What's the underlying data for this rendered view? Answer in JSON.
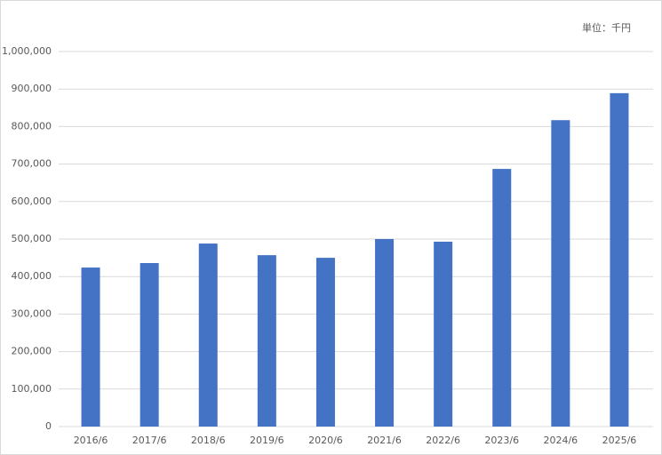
{
  "chart_data": {
    "type": "bar",
    "annotation": "単位：千円",
    "categories": [
      "2016/6",
      "2017/6",
      "2018/6",
      "2019/6",
      "2020/6",
      "2021/6",
      "2022/6",
      "2023/6",
      "2024/6",
      "2025/6"
    ],
    "values": [
      424000,
      436000,
      488000,
      457000,
      450000,
      500000,
      493000,
      687000,
      817000,
      889000
    ],
    "color": "#4472c4",
    "ylim": [
      0,
      1000000
    ],
    "yticks": [
      0,
      {
        "value": 100000,
        "label": "100,000"
      },
      {
        "value": 200000,
        "label": "200,000"
      },
      {
        "value": 300000,
        "label": "300,000"
      },
      {
        "value": 400000,
        "label": "400,000"
      },
      {
        "value": 500000,
        "label": "500,000"
      },
      {
        "value": 600000,
        "label": "600,000"
      },
      {
        "value": 700000,
        "label": "700,000"
      },
      {
        "value": 800000,
        "label": "800,000"
      },
      {
        "value": 900000,
        "label": "900,000"
      },
      {
        "value": 1000000,
        "label": "1,000,000"
      }
    ],
    "grid": true
  }
}
